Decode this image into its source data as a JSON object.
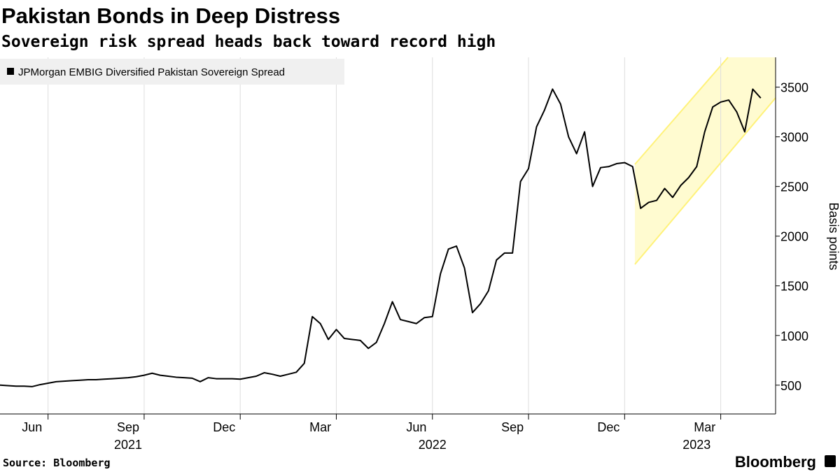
{
  "chart_data": {
    "type": "line",
    "title": "Pakistan Bonds in Deep Distress",
    "subtitle": "Sovereign risk spread heads back toward record high",
    "y_label": "Basis points",
    "source": "Source: Bloomberg",
    "branding": "Bloomberg",
    "categories": [
      null,
      null,
      null,
      null,
      "Jun",
      null,
      null,
      null,
      null,
      null,
      null,
      null,
      null,
      null,
      null,
      null,
      "Sep",
      null,
      null,
      null,
      null,
      null,
      null,
      null,
      null,
      null,
      null,
      null,
      "Dec",
      null,
      null,
      null,
      null,
      null,
      null,
      null,
      null,
      null,
      null,
      null,
      "Mar",
      null,
      null,
      null,
      null,
      null,
      null,
      null,
      null,
      null,
      null,
      null,
      "Jun",
      null,
      null,
      null,
      null,
      null,
      null,
      null,
      null,
      null,
      null,
      null,
      "Sep",
      null,
      null,
      null,
      null,
      null,
      null,
      null,
      null,
      null,
      null,
      null,
      "Dec",
      null,
      null,
      null,
      null,
      null,
      null,
      null,
      null,
      null,
      null,
      null,
      "Mar",
      null,
      null,
      null,
      null,
      null,
      null,
      null
    ],
    "years": [
      null,
      null,
      null,
      null,
      null,
      null,
      null,
      null,
      null,
      null,
      null,
      null,
      null,
      null,
      null,
      null,
      "2021",
      null,
      null,
      null,
      null,
      null,
      null,
      null,
      null,
      null,
      null,
      null,
      null,
      null,
      null,
      null,
      null,
      null,
      null,
      null,
      null,
      null,
      null,
      null,
      null,
      null,
      null,
      null,
      null,
      null,
      null,
      null,
      null,
      null,
      null,
      null,
      null,
      null,
      "2022",
      null,
      null,
      null,
      null,
      null,
      null,
      null,
      null,
      null,
      null,
      null,
      null,
      null,
      null,
      null,
      null,
      null,
      null,
      null,
      null,
      null,
      null,
      null,
      null,
      null,
      null,
      null,
      null,
      null,
      null,
      null,
      null,
      "2023",
      null,
      null,
      null,
      null,
      null,
      null,
      null,
      null
    ],
    "series": [
      {
        "name": "JPMorgan EMBIG Diversified Pakistan Sovereign Spread",
        "color": "#000000",
        "values": [
          500,
          495,
          490,
          490,
          485,
          505,
          520,
          535,
          540,
          545,
          550,
          555,
          555,
          560,
          565,
          570,
          575,
          585,
          600,
          620,
          600,
          590,
          580,
          575,
          570,
          535,
          575,
          565,
          565,
          565,
          560,
          575,
          590,
          625,
          610,
          590,
          610,
          630,
          720,
          1190,
          1120,
          960,
          1060,
          970,
          960,
          950,
          870,
          930,
          1120,
          1340,
          1160,
          1140,
          1120,
          1180,
          1190,
          1620,
          1870,
          1900,
          1680,
          1230,
          1320,
          1450,
          1760,
          1830,
          1830,
          2550,
          2680,
          3100,
          3270,
          3480,
          3330,
          3000,
          2830,
          3050,
          2500,
          2690,
          2700,
          2730,
          2740,
          2700,
          2280,
          2340,
          2360,
          2480,
          2390,
          2510,
          2590,
          2700,
          3050,
          3300,
          3350,
          3370,
          3250,
          3050,
          3480,
          3390
        ]
      }
    ],
    "ylim": [
      210,
      3800
    ],
    "yticks": [
      500,
      1000,
      1500,
      2000,
      2500,
      3000,
      3500
    ],
    "grid": false
  }
}
